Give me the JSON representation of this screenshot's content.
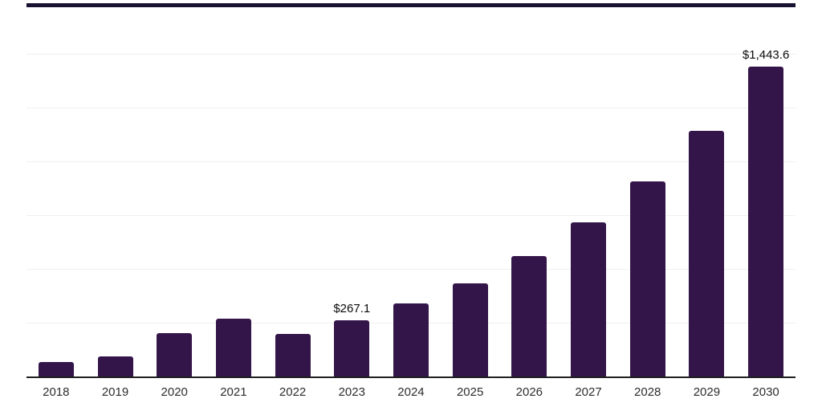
{
  "page": {
    "background": "#ffffff"
  },
  "header_strip": {
    "color": "#1a1232"
  },
  "chart_data": {
    "type": "bar",
    "title": "",
    "xlabel": "",
    "ylabel": "",
    "categories": [
      "2018",
      "2019",
      "2020",
      "2021",
      "2022",
      "2023",
      "2024",
      "2025",
      "2026",
      "2027",
      "2028",
      "2029",
      "2030"
    ],
    "values": [
      71,
      97,
      205,
      273,
      202,
      267.1,
      344,
      437,
      565,
      721,
      911,
      1147,
      1443.6
    ],
    "data_labels": [
      {
        "category": "2023",
        "text": "$267.1"
      },
      {
        "category": "2030",
        "text": "$1,443.6"
      }
    ],
    "ylim": [
      0,
      1755
    ],
    "gridline_interval": 250,
    "grid_visible": true,
    "legend_position": "none",
    "colors": {
      "bar": "#341549",
      "axis": "#1f1f1f",
      "gridline": "#f0f0f0",
      "tick_label": "#2d2d2d",
      "value_label": "#0a0a0a"
    }
  }
}
